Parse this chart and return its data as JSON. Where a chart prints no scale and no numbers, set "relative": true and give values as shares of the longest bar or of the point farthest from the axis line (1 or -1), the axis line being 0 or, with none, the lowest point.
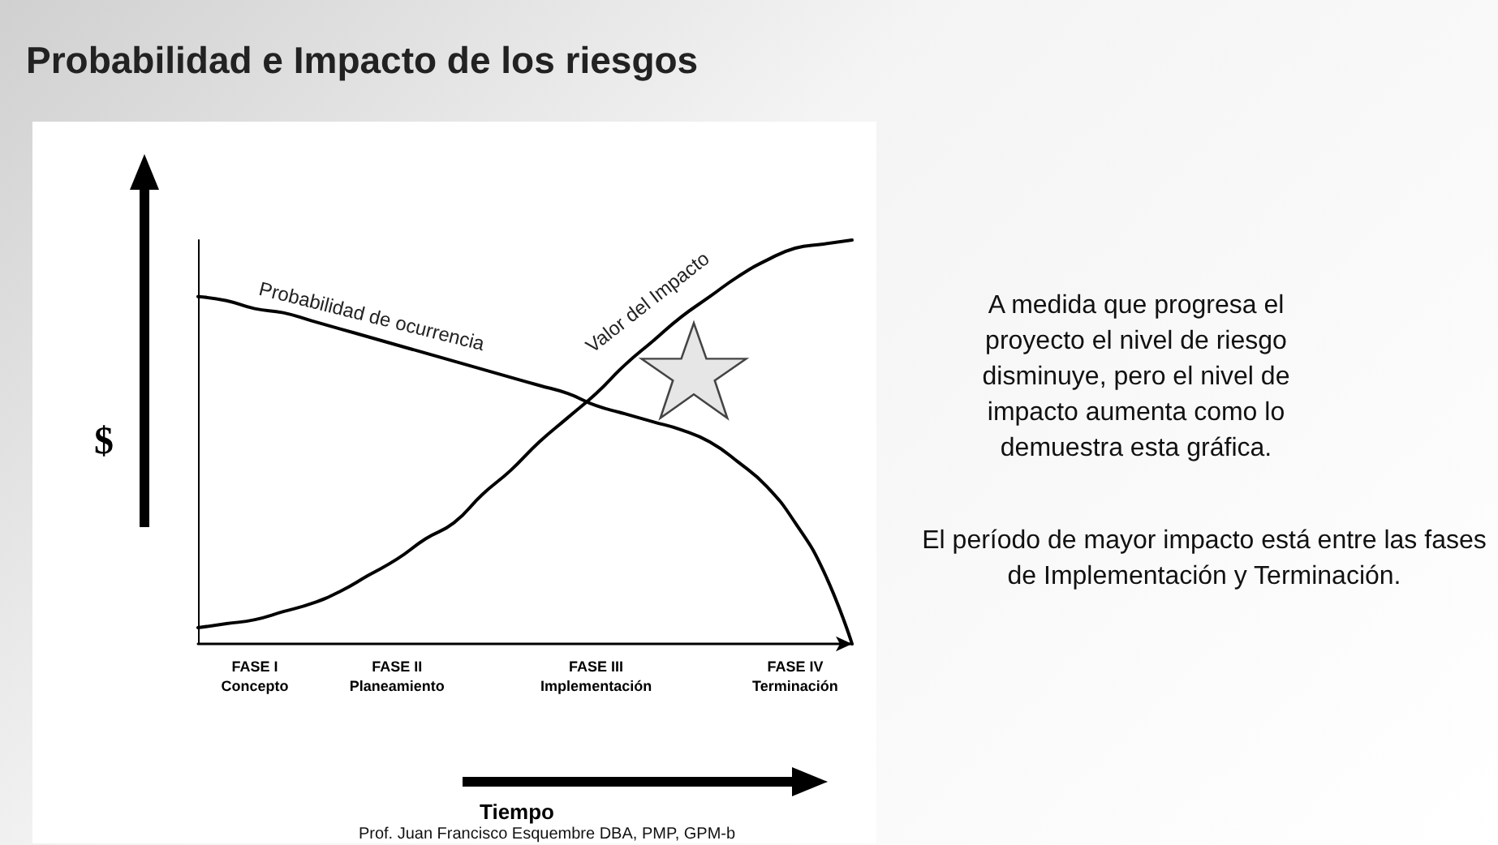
{
  "chart_data": {
    "type": "line",
    "title": "Probabilidad e Impacto de los riesgos",
    "xlabel": "Tiempo",
    "ylabel": "$",
    "relative": true,
    "legend": false,
    "grid": false,
    "marker": "none",
    "line_style": "solid",
    "categories": [
      null,
      null,
      "FASE I\nConcepto",
      null,
      null,
      null,
      null,
      "FASE II\nPlaneamiento",
      null,
      null,
      null,
      null,
      null,
      null,
      "FASE III\nImplementación",
      null,
      null,
      null,
      null,
      null,
      null,
      "FASE IV\nTerminación",
      null,
      null
    ],
    "series": [
      {
        "name": "Probabilidad de ocurrencia",
        "color": "#000000",
        "values": [
          0.86,
          0.85,
          0.83,
          0.82,
          0.8,
          0.78,
          0.76,
          0.74,
          0.72,
          0.7,
          0.68,
          0.66,
          0.64,
          0.62,
          0.59,
          0.57,
          0.55,
          0.53,
          0.5,
          0.45,
          0.39,
          0.3,
          0.18,
          0
        ]
      },
      {
        "name": "Valor del Impacto",
        "color": "#000000",
        "values": [
          0.04,
          0.05,
          0.06,
          0.08,
          0.1,
          0.13,
          0.17,
          0.21,
          0.26,
          0.3,
          0.37,
          0.43,
          0.5,
          0.56,
          0.62,
          0.69,
          0.75,
          0.81,
          0.86,
          0.91,
          0.95,
          0.98,
          0.99,
          1.0
        ]
      }
    ],
    "annotations": [
      "A medida que progresa el proyecto el nivel de riesgo disminuye, pero el nivel de impacto aumenta como lo demuestra esta gráfica.",
      "El período de mayor impacto está entre las fases de Implementación y Terminación.",
      "Prof. Juan Francisco Esquembre DBA, PMP, GPM-b"
    ]
  }
}
